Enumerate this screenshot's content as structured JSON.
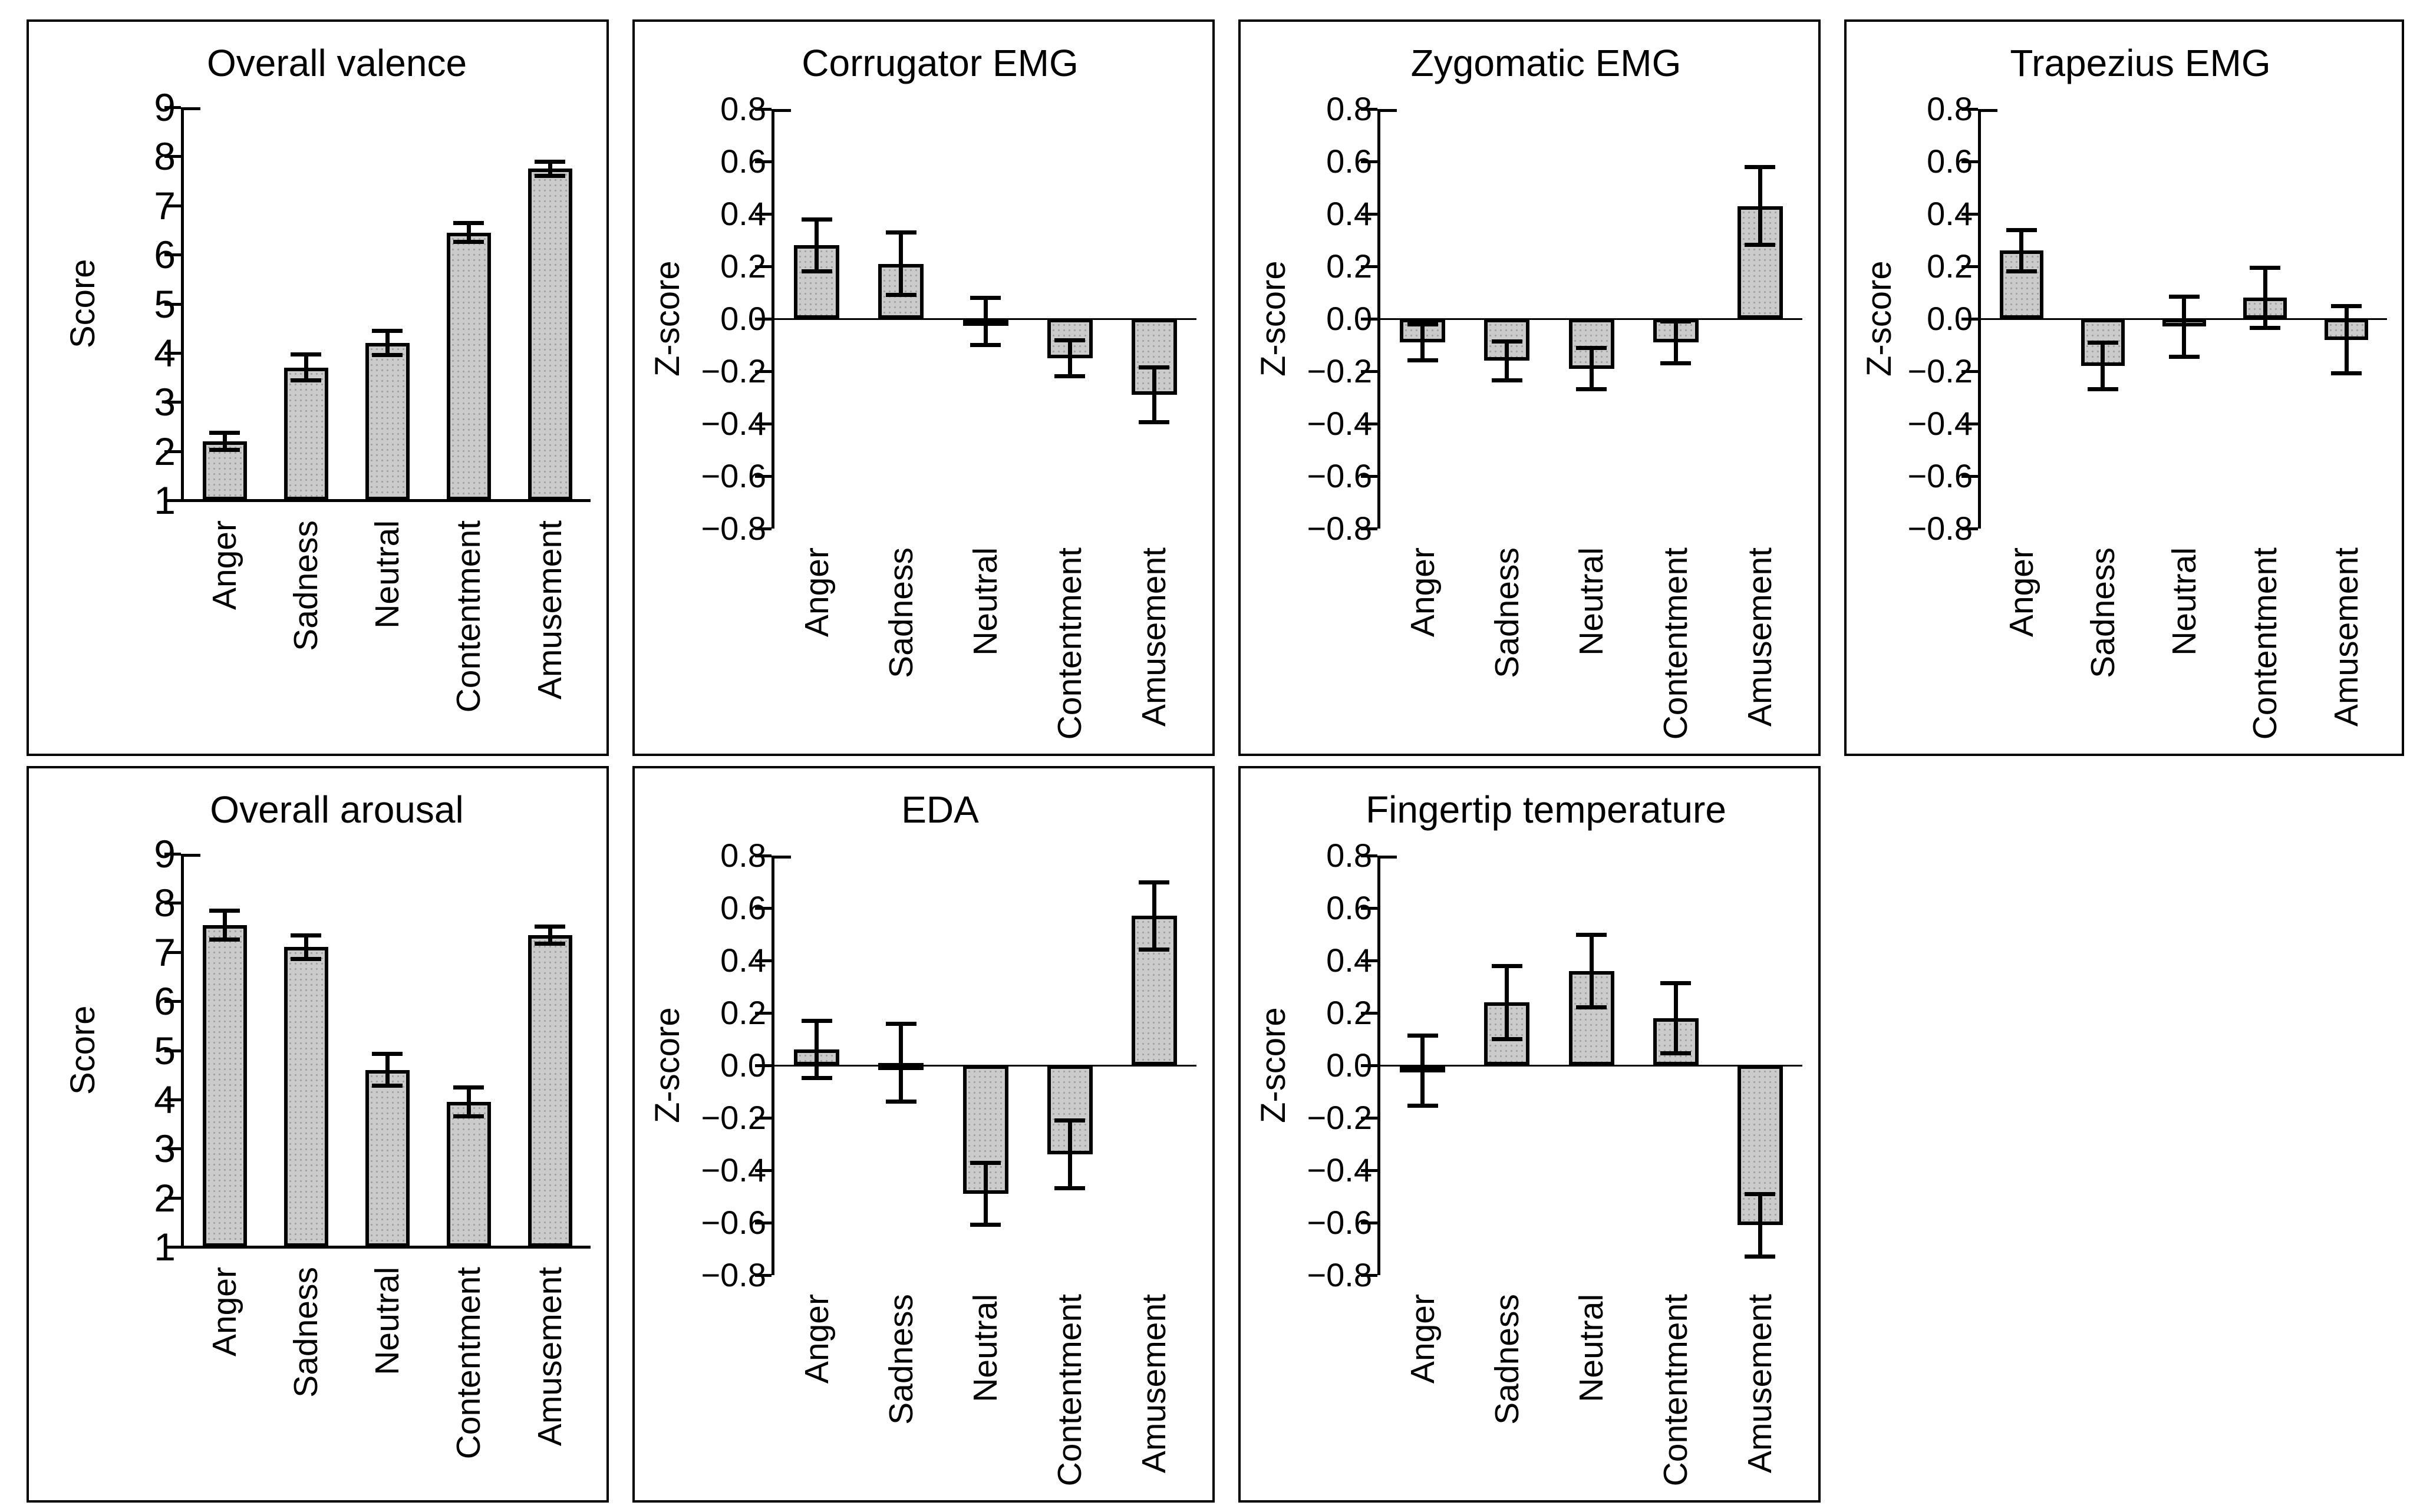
{
  "figure": {
    "description": "Seven-panel bar chart figure: self-report and physiological responses by emotion condition",
    "colors": {
      "background": "#ffffff",
      "bar_fill": "#cbcbcb",
      "bar_dot_texture": "#9e9e9e",
      "bar_edge": "#000000",
      "axis": "#000000",
      "text": "#000000"
    },
    "rows": 2,
    "cols": 4,
    "empty_cells": [
      {
        "row": 1,
        "col": 3
      }
    ]
  },
  "chart_data": [
    {
      "id": "overall-valence",
      "type": "bar",
      "title": "Overall valence",
      "ylabel": "Score",
      "xlabel": "",
      "axis_type": "score",
      "ylim": [
        1,
        9
      ],
      "yticks": [
        9,
        8,
        7,
        6,
        5,
        4,
        3,
        2,
        1
      ],
      "ytick_labels": [
        "9",
        "8",
        "7",
        "6",
        "5",
        "4",
        "3",
        "2",
        "1"
      ],
      "categories": [
        "Anger",
        "Sadness",
        "Neutral",
        "Contentment",
        "Amusement"
      ],
      "values": [
        2.2,
        3.7,
        4.2,
        6.45,
        7.75
      ],
      "errors": [
        0.18,
        0.27,
        0.25,
        0.2,
        0.15
      ],
      "error_bars": true,
      "grid": false,
      "legend": false,
      "row": 0,
      "col": 0
    },
    {
      "id": "corrugator-emg",
      "type": "bar",
      "title": "Corrugator EMG",
      "ylabel": "Z-score",
      "xlabel": "",
      "axis_type": "zscore",
      "ylim": [
        -0.8,
        0.8
      ],
      "yticks": [
        0.8,
        0.6,
        0.4,
        0.2,
        0.0,
        -0.2,
        -0.4,
        -0.6,
        -0.8
      ],
      "ytick_labels": [
        "0.8",
        "0.6",
        "0.4",
        "0.2",
        "0.0",
        "−0.2",
        "−0.4",
        "−0.6",
        "−0.8"
      ],
      "categories": [
        "Anger",
        "Sadness",
        "Neutral",
        "Contentment",
        "Amusement"
      ],
      "values": [
        0.28,
        0.21,
        -0.01,
        -0.15,
        -0.29
      ],
      "errors": [
        0.1,
        0.12,
        0.09,
        0.07,
        0.105
      ],
      "error_bars": true,
      "grid": false,
      "legend": false,
      "row": 0,
      "col": 1
    },
    {
      "id": "zygomatic-emg",
      "type": "bar",
      "title": "Zygomatic EMG",
      "ylabel": "Z-score",
      "xlabel": "",
      "axis_type": "zscore",
      "ylim": [
        -0.8,
        0.8
      ],
      "yticks": [
        0.8,
        0.6,
        0.4,
        0.2,
        0.0,
        -0.2,
        -0.4,
        -0.6,
        -0.8
      ],
      "ytick_labels": [
        "0.8",
        "0.6",
        "0.4",
        "0.2",
        "0.0",
        "−0.2",
        "−0.4",
        "−0.6",
        "−0.8"
      ],
      "categories": [
        "Anger",
        "Sadness",
        "Neutral",
        "Contentment",
        "Amusement"
      ],
      "values": [
        -0.09,
        -0.16,
        -0.19,
        -0.09,
        0.43
      ],
      "errors": [
        0.07,
        0.075,
        0.08,
        0.08,
        0.15
      ],
      "error_bars": true,
      "grid": false,
      "legend": false,
      "row": 0,
      "col": 2
    },
    {
      "id": "trapezius-emg",
      "type": "bar",
      "title": "Trapezius EMG",
      "ylabel": "Z-score",
      "xlabel": "",
      "axis_type": "zscore",
      "ylim": [
        -0.8,
        0.8
      ],
      "yticks": [
        0.8,
        0.6,
        0.4,
        0.2,
        0.0,
        -0.2,
        -0.4,
        -0.6,
        -0.8
      ],
      "ytick_labels": [
        "0.8",
        "0.6",
        "0.4",
        "0.2",
        "0.0",
        "−0.2",
        "−0.4",
        "−0.6",
        "−0.8"
      ],
      "categories": [
        "Anger",
        "Sadness",
        "Neutral",
        "Contentment",
        "Amusement"
      ],
      "values": [
        0.26,
        -0.18,
        -0.03,
        0.08,
        -0.08
      ],
      "errors": [
        0.08,
        0.09,
        0.115,
        0.115,
        0.13
      ],
      "error_bars": true,
      "grid": false,
      "legend": false,
      "row": 0,
      "col": 3
    },
    {
      "id": "overall-arousal",
      "type": "bar",
      "title": "Overall arousal",
      "ylabel": "Score",
      "xlabel": "",
      "axis_type": "score",
      "ylim": [
        1,
        9
      ],
      "yticks": [
        9,
        8,
        7,
        6,
        5,
        4,
        3,
        2,
        1
      ],
      "ytick_labels": [
        "9",
        "8",
        "7",
        "6",
        "5",
        "4",
        "3",
        "2",
        "1"
      ],
      "categories": [
        "Anger",
        "Sadness",
        "Neutral",
        "Contentment",
        "Amusement"
      ],
      "values": [
        7.55,
        7.1,
        4.6,
        3.95,
        7.35
      ],
      "errors": [
        0.3,
        0.25,
        0.33,
        0.3,
        0.18
      ],
      "error_bars": true,
      "grid": false,
      "legend": false,
      "row": 1,
      "col": 0
    },
    {
      "id": "eda",
      "type": "bar",
      "title": "EDA",
      "ylabel": "Z-score",
      "xlabel": "",
      "axis_type": "zscore",
      "ylim": [
        -0.8,
        0.8
      ],
      "yticks": [
        0.8,
        0.6,
        0.4,
        0.2,
        0.0,
        -0.2,
        -0.4,
        -0.6,
        -0.8
      ],
      "ytick_labels": [
        "0.8",
        "0.6",
        "0.4",
        "0.2",
        "0.0",
        "−0.2",
        "−0.4",
        "−0.6",
        "−0.8"
      ],
      "categories": [
        "Anger",
        "Sadness",
        "Neutral",
        "Contentment",
        "Amusement"
      ],
      "values": [
        0.06,
        0.01,
        -0.49,
        -0.34,
        0.57
      ],
      "errors": [
        0.11,
        0.15,
        0.12,
        0.13,
        0.13
      ],
      "error_bars": true,
      "grid": false,
      "legend": false,
      "row": 1,
      "col": 1
    },
    {
      "id": "fingertip-temperature",
      "type": "bar",
      "title": "Fingertip temperature",
      "ylabel": "Z-score",
      "xlabel": "",
      "axis_type": "zscore",
      "ylim": [
        -0.8,
        0.8
      ],
      "yticks": [
        0.8,
        0.6,
        0.4,
        0.2,
        0.0,
        -0.2,
        -0.4,
        -0.6,
        -0.8
      ],
      "ytick_labels": [
        "0.8",
        "0.6",
        "0.4",
        "0.2",
        "0.0",
        "−0.2",
        "−0.4",
        "−0.6",
        "−0.8"
      ],
      "categories": [
        "Anger",
        "Sadness",
        "Neutral",
        "Contentment",
        "Amusement"
      ],
      "values": [
        -0.02,
        0.24,
        0.36,
        0.18,
        -0.61
      ],
      "errors": [
        0.135,
        0.14,
        0.14,
        0.135,
        0.12
      ],
      "error_bars": true,
      "grid": false,
      "legend": false,
      "row": 1,
      "col": 2
    }
  ]
}
